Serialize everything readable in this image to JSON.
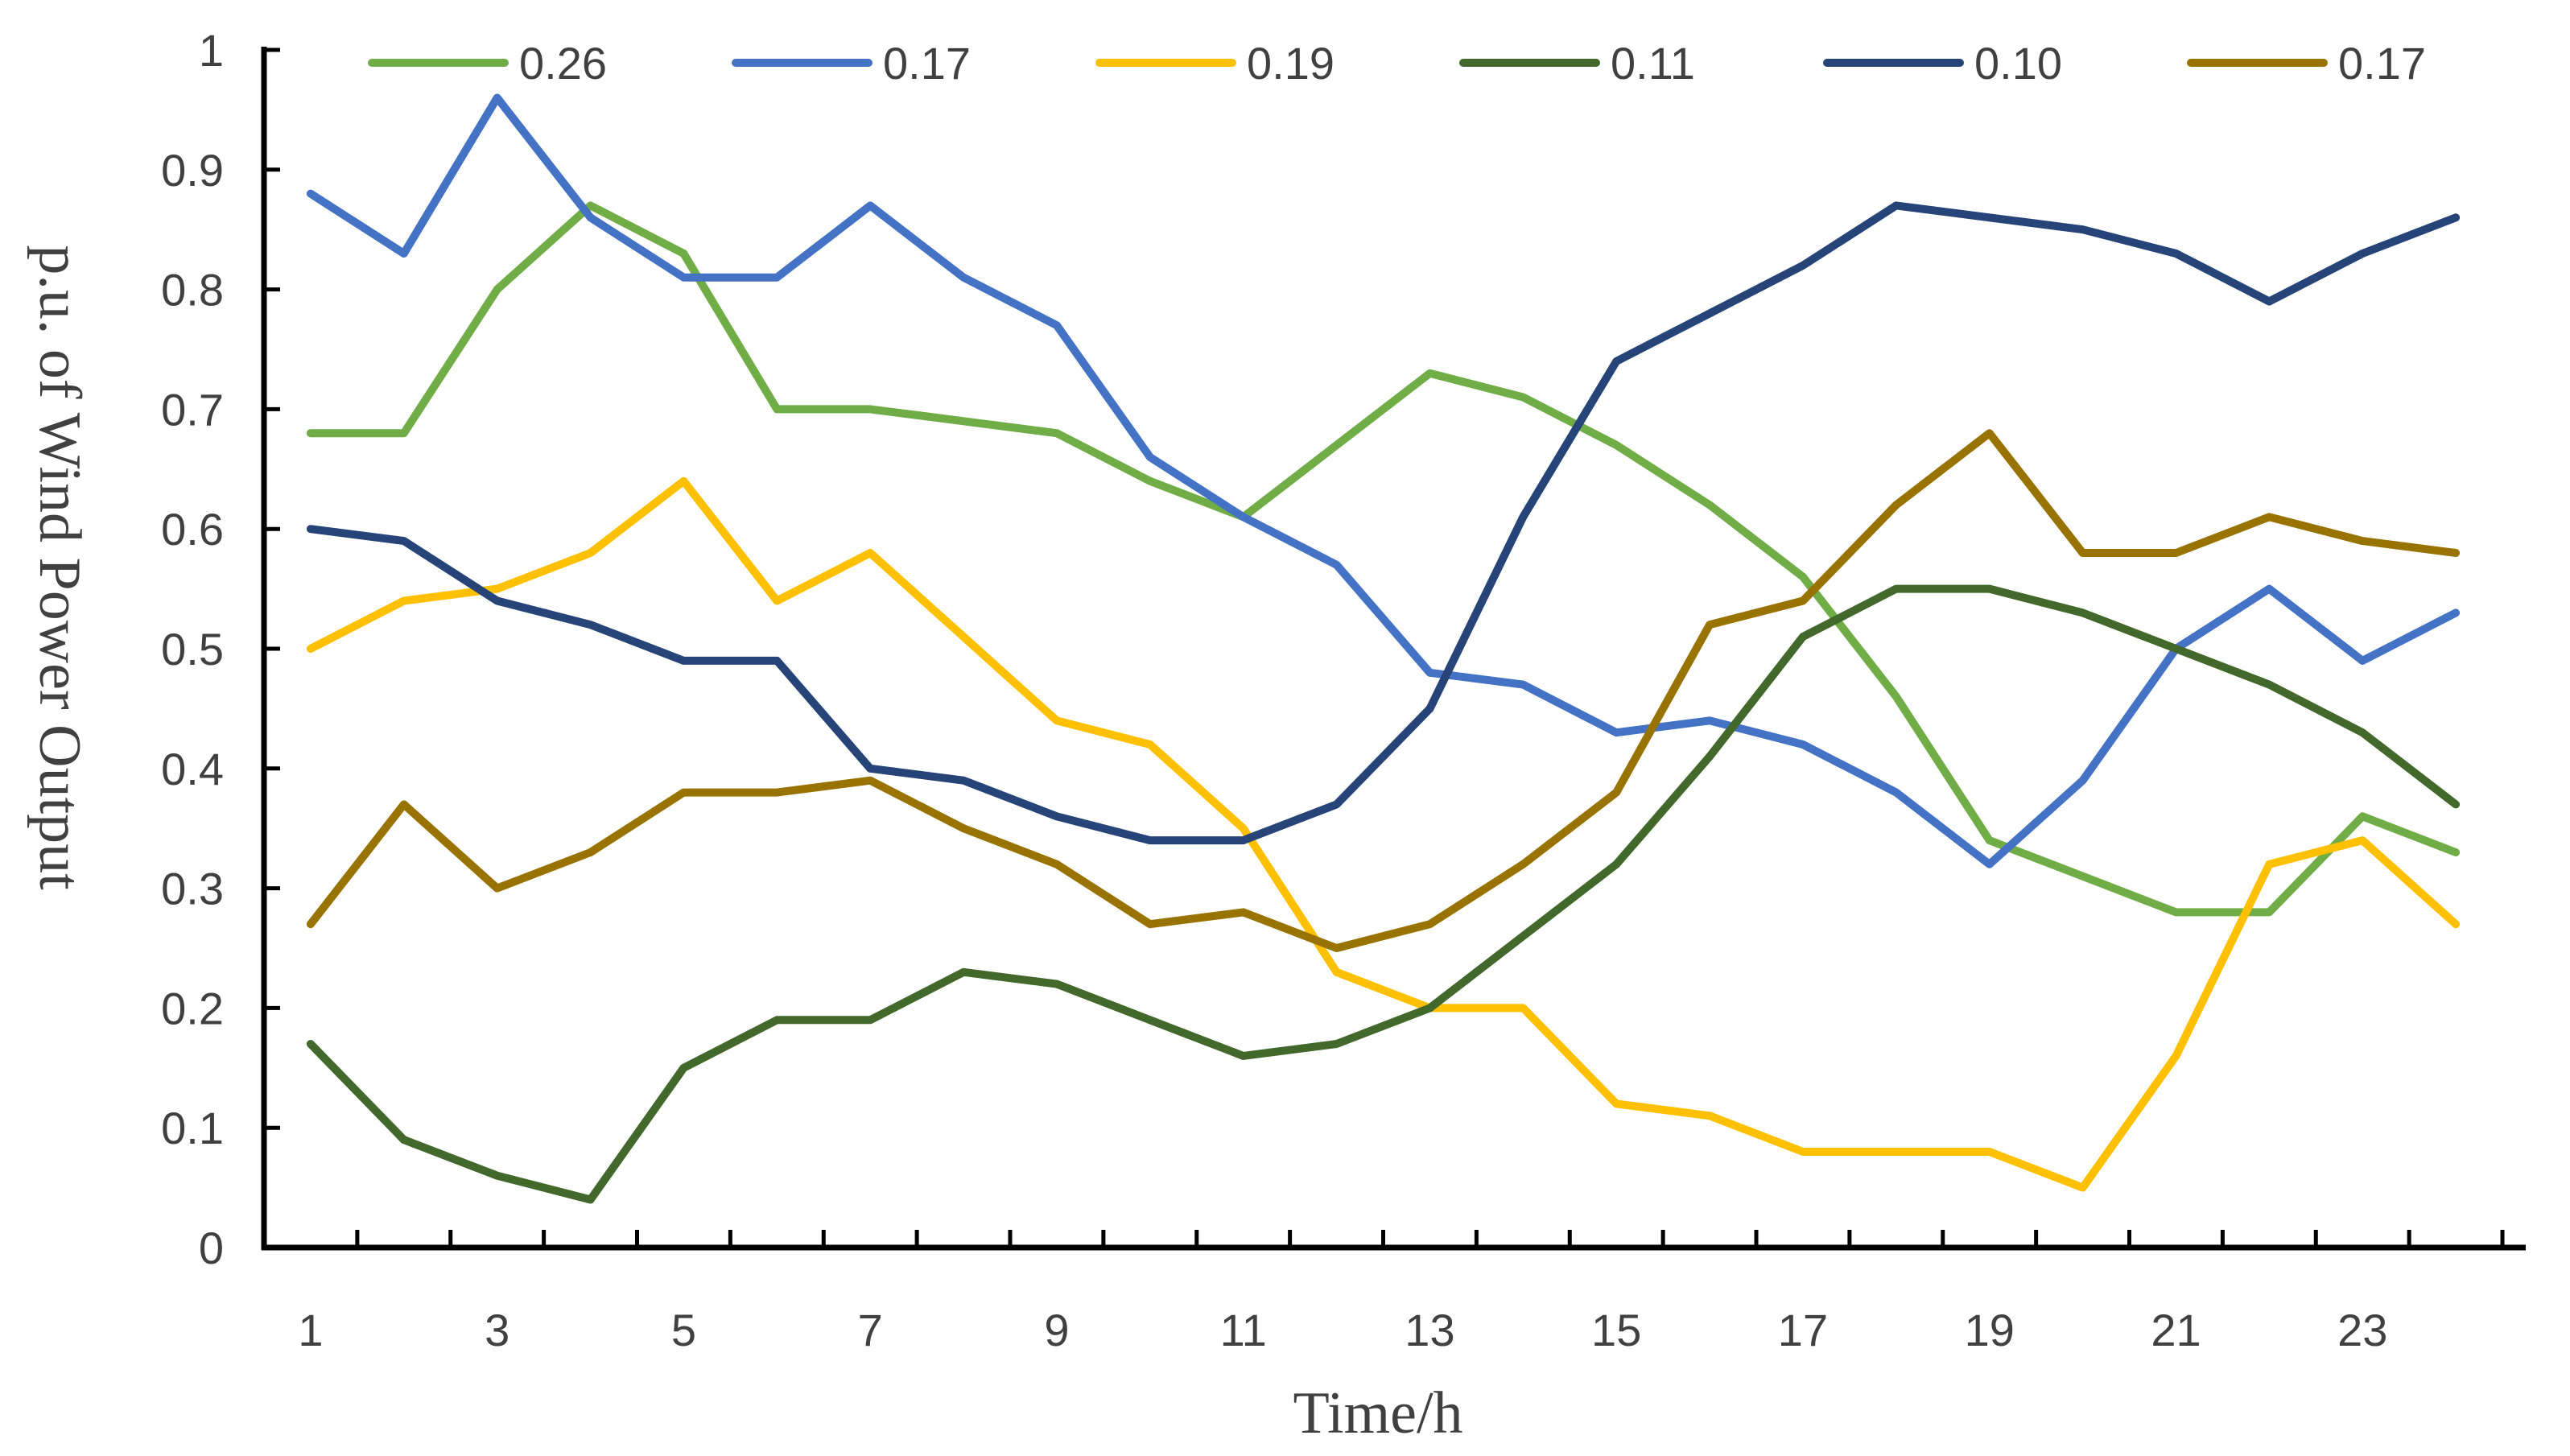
{
  "chart_data": {
    "type": "line",
    "title": "",
    "xlabel": "Time/h",
    "ylabel": "p.u. of Wind Power Output",
    "x": [
      1,
      2,
      3,
      4,
      5,
      6,
      7,
      8,
      9,
      10,
      11,
      12,
      13,
      14,
      15,
      16,
      17,
      18,
      19,
      20,
      21,
      22,
      23,
      24
    ],
    "xticks": [
      1,
      3,
      5,
      7,
      9,
      11,
      13,
      15,
      17,
      19,
      21,
      23
    ],
    "xlim": [
      0.5,
      24.75
    ],
    "ylim": [
      0,
      1
    ],
    "yticks": [
      0,
      0.1,
      0.2,
      0.3,
      0.4,
      0.5,
      0.6,
      0.7,
      0.8,
      0.9,
      1
    ],
    "ytick_labels": [
      "0",
      "0.1",
      "0.2",
      "0.3",
      "0.4",
      "0.5",
      "0.6",
      "0.7",
      "0.8",
      "0.9",
      "1"
    ],
    "grid": false,
    "legend_position": "top",
    "series": [
      {
        "name": "0.26",
        "color": "#70AD47",
        "values": [
          0.68,
          0.68,
          0.8,
          0.87,
          0.83,
          0.7,
          0.7,
          0.69,
          0.68,
          0.64,
          0.61,
          0.67,
          0.73,
          0.71,
          0.67,
          0.62,
          0.56,
          0.46,
          0.34,
          0.31,
          0.28,
          0.28,
          0.36,
          0.33
        ]
      },
      {
        "name": "0.17",
        "color": "#4472C4",
        "values": [
          0.88,
          0.83,
          0.96,
          0.86,
          0.81,
          0.81,
          0.87,
          0.81,
          0.77,
          0.66,
          0.61,
          0.57,
          0.48,
          0.47,
          0.43,
          0.44,
          0.42,
          0.38,
          0.32,
          0.39,
          0.5,
          0.55,
          0.49,
          0.53
        ]
      },
      {
        "name": "0.19",
        "color": "#FFC000",
        "values": [
          0.5,
          0.54,
          0.55,
          0.58,
          0.64,
          0.54,
          0.58,
          0.51,
          0.44,
          0.42,
          0.35,
          0.23,
          0.2,
          0.2,
          0.12,
          0.11,
          0.08,
          0.08,
          0.08,
          0.05,
          0.16,
          0.32,
          0.34,
          0.27
        ]
      },
      {
        "name": "0.11",
        "color": "#43682B",
        "values": [
          0.17,
          0.09,
          0.06,
          0.04,
          0.15,
          0.19,
          0.19,
          0.23,
          0.22,
          0.19,
          0.16,
          0.17,
          0.2,
          0.26,
          0.32,
          0.41,
          0.51,
          0.55,
          0.55,
          0.53,
          0.5,
          0.47,
          0.43,
          0.37
        ]
      },
      {
        "name": "0.10",
        "color": "#264478",
        "values": [
          0.6,
          0.59,
          0.54,
          0.52,
          0.49,
          0.49,
          0.4,
          0.39,
          0.36,
          0.34,
          0.34,
          0.37,
          0.45,
          0.61,
          0.74,
          0.78,
          0.82,
          0.87,
          0.86,
          0.85,
          0.83,
          0.79,
          0.83,
          0.86
        ]
      },
      {
        "name": "0.17",
        "color": "#997300",
        "values": [
          0.27,
          0.37,
          0.3,
          0.33,
          0.38,
          0.38,
          0.39,
          0.35,
          0.32,
          0.27,
          0.28,
          0.25,
          0.27,
          0.32,
          0.38,
          0.52,
          0.54,
          0.62,
          0.68,
          0.58,
          0.58,
          0.61,
          0.59,
          0.58
        ]
      }
    ]
  }
}
